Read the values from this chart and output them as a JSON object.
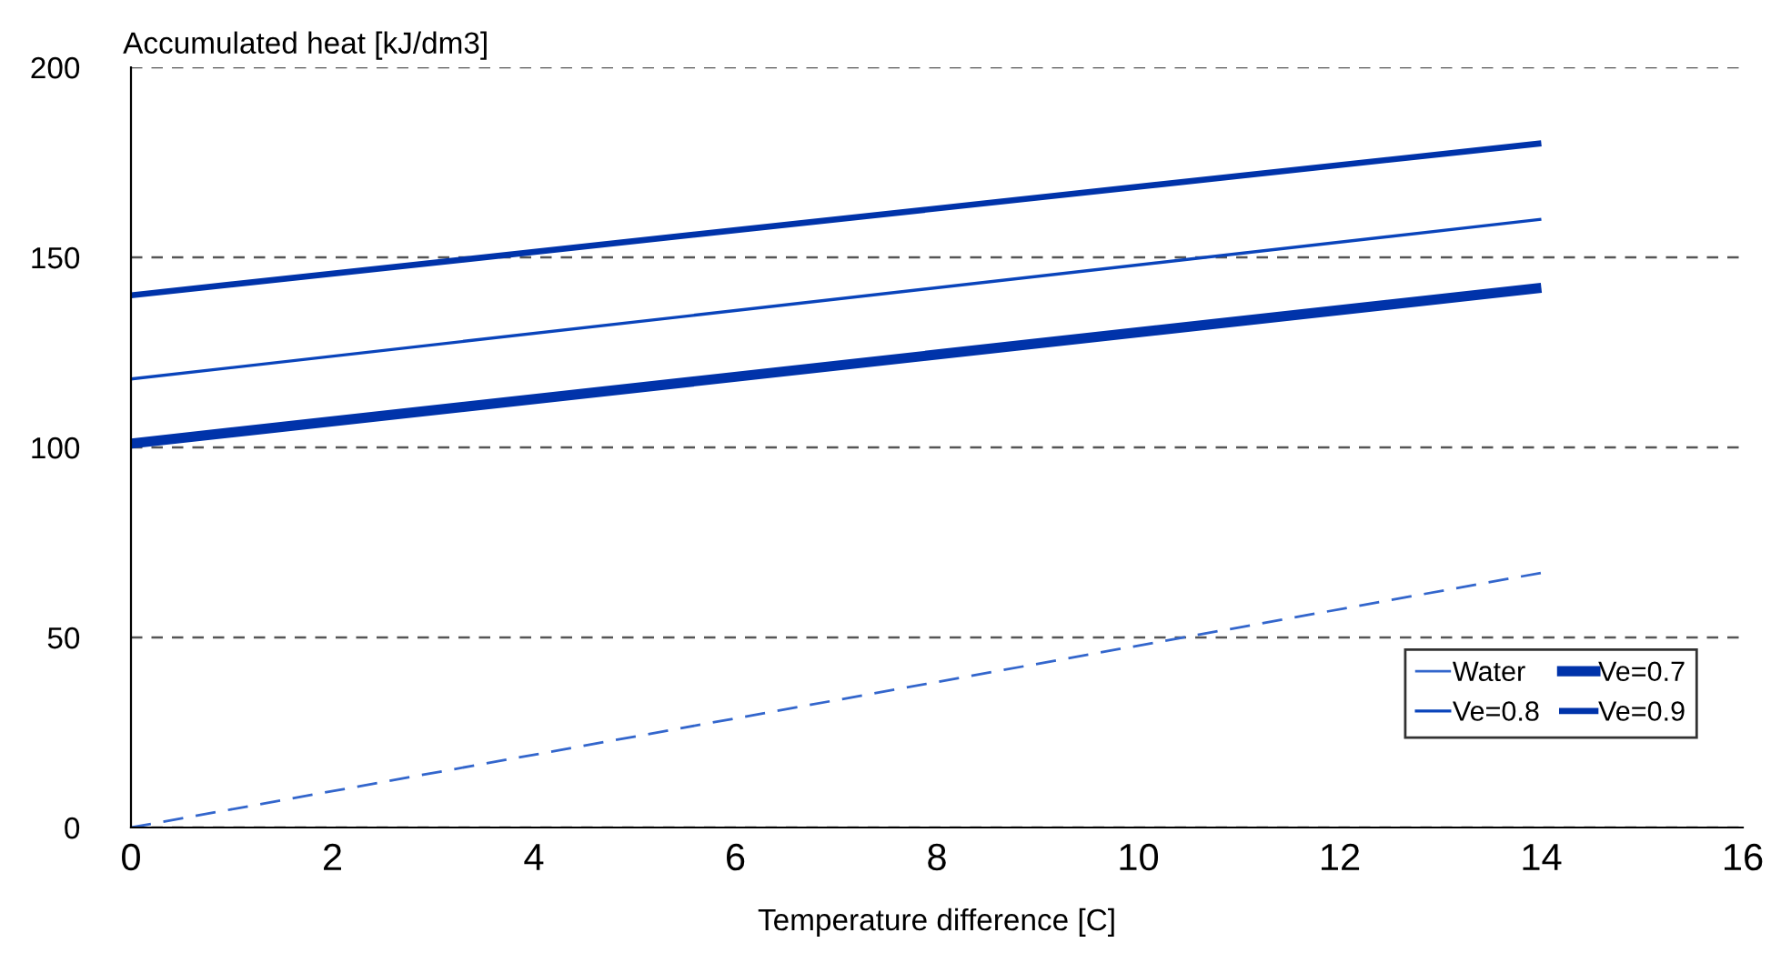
{
  "chart_data": {
    "type": "line",
    "xlabel": "Temperature difference [C]",
    "ylabel": "Accumulated heat [kJ/dm3]",
    "x": [
      0,
      14
    ],
    "xlim": [
      0,
      16
    ],
    "xticks": [
      0,
      2,
      4,
      6,
      8,
      10,
      12,
      14,
      16
    ],
    "ylim": [
      0,
      200
    ],
    "yticks": [
      0,
      50,
      100,
      150,
      200
    ],
    "grid": "y",
    "legend": "bottom right",
    "marker": "none",
    "series": [
      {
        "name": "Water",
        "color": "#3366cc",
        "values": [
          0,
          67
        ],
        "line_style": "dashed"
      },
      {
        "name": "Ve=0.7",
        "color": "#0033aa",
        "values": [
          101,
          142
        ]
      },
      {
        "name": "Ve=0.8",
        "color": "#0a44bb",
        "values": [
          118,
          160
        ]
      },
      {
        "name": "Ve=0.9",
        "color": "#0033aa",
        "values": [
          140,
          180
        ]
      }
    ]
  }
}
